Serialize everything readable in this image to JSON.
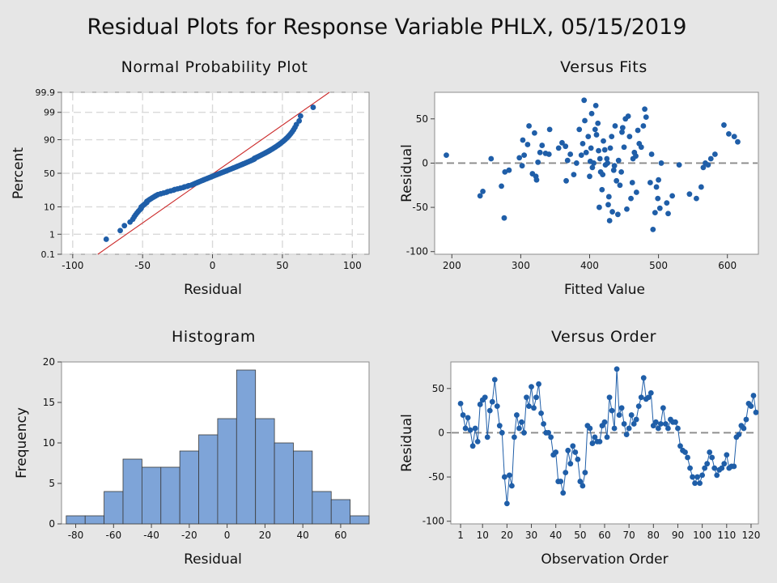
{
  "title": "Residual Plots for Response Variable PHLX, 05/15/2019",
  "colors": {
    "points": "#1f5ea8",
    "bars": "#7ea4d8",
    "fit_line": "#cc2b2b",
    "background": "#e6e6e6"
  },
  "chart_data": [
    {
      "id": "probability",
      "type": "scatter",
      "title": "Normal Probability Plot",
      "xlabel": "Residual",
      "ylabel": "Percent",
      "xlim": [
        -108,
        112
      ],
      "xticks": [
        -100,
        -50,
        0,
        50,
        100
      ],
      "yticks": [
        0.1,
        1,
        10,
        50,
        90,
        99,
        99.9
      ],
      "grid": true,
      "fit_line": {
        "mean": 0.8,
        "sd": 26.8
      },
      "residuals": [
        -76,
        -66,
        -63,
        -59,
        -57,
        -56,
        -55,
        -54,
        -53,
        -52,
        -51,
        -51,
        -50,
        -49,
        -48,
        -47,
        -47,
        -46,
        -45,
        -44,
        -43,
        -42,
        -41,
        -40,
        -39,
        -37,
        -35,
        -33,
        -32,
        -30,
        -28,
        -27,
        -25,
        -23,
        -21,
        -20,
        -18,
        -17,
        -15,
        -14,
        -13,
        -12,
        -11,
        -10,
        -9,
        -8,
        -7,
        -6,
        -5,
        -4,
        -3,
        -2,
        -1,
        0,
        1,
        2,
        3,
        4,
        5,
        6,
        7,
        8,
        9,
        10,
        11,
        12,
        13,
        14,
        15,
        16,
        17,
        18,
        19,
        20,
        21,
        22,
        23,
        24,
        25,
        26,
        27,
        28,
        29,
        30,
        30,
        31,
        32,
        33,
        34,
        35,
        36,
        37,
        38,
        39,
        40,
        41,
        42,
        43,
        44,
        45,
        46,
        47,
        48,
        49,
        50,
        51,
        52,
        53,
        54,
        55,
        56,
        57,
        58,
        59,
        60,
        62,
        63,
        72
      ]
    },
    {
      "id": "fits",
      "type": "scatter",
      "title": "Versus Fits",
      "xlabel": "Fitted Value",
      "ylabel": "Residual",
      "xlim": [
        175,
        645
      ],
      "ylim": [
        -103,
        80
      ],
      "xticks": [
        200,
        300,
        400,
        500,
        600
      ],
      "yticks": [
        -100,
        -50,
        0,
        50
      ],
      "reference_line": 0,
      "points": [
        [
          192,
          9
        ],
        [
          241,
          -37
        ],
        [
          245,
          -32
        ],
        [
          257,
          5
        ],
        [
          272,
          -26
        ],
        [
          276,
          -62
        ],
        [
          277,
          -10
        ],
        [
          283,
          -8
        ],
        [
          298,
          6
        ],
        [
          302,
          -3
        ],
        [
          303,
          26
        ],
        [
          305,
          9
        ],
        [
          310,
          21
        ],
        [
          312,
          42
        ],
        [
          317,
          -12
        ],
        [
          320,
          34
        ],
        [
          322,
          -15
        ],
        [
          323,
          -19
        ],
        [
          325,
          1
        ],
        [
          328,
          12
        ],
        [
          331,
          20
        ],
        [
          336,
          11
        ],
        [
          341,
          10
        ],
        [
          342,
          38
        ],
        [
          355,
          17
        ],
        [
          360,
          23
        ],
        [
          365,
          19
        ],
        [
          366,
          -20
        ],
        [
          368,
          3
        ],
        [
          372,
          10
        ],
        [
          377,
          -13
        ],
        [
          381,
          0
        ],
        [
          385,
          38
        ],
        [
          388,
          9
        ],
        [
          390,
          22
        ],
        [
          392,
          71
        ],
        [
          393,
          48
        ],
        [
          395,
          12
        ],
        [
          398,
          30
        ],
        [
          400,
          -15
        ],
        [
          401,
          2
        ],
        [
          402,
          17
        ],
        [
          403,
          56
        ],
        [
          404,
          -5
        ],
        [
          406,
          0
        ],
        [
          408,
          38
        ],
        [
          409,
          65
        ],
        [
          410,
          32
        ],
        [
          412,
          45
        ],
        [
          413,
          14
        ],
        [
          414,
          -50
        ],
        [
          415,
          5
        ],
        [
          416,
          -10
        ],
        [
          418,
          -30
        ],
        [
          419,
          -13
        ],
        [
          420,
          25
        ],
        [
          422,
          15
        ],
        [
          423,
          -2
        ],
        [
          425,
          5
        ],
        [
          426,
          0
        ],
        [
          427,
          -47
        ],
        [
          428,
          -38
        ],
        [
          429,
          -65
        ],
        [
          430,
          17
        ],
        [
          432,
          30
        ],
        [
          433,
          -55
        ],
        [
          435,
          -8
        ],
        [
          436,
          -3
        ],
        [
          437,
          42
        ],
        [
          439,
          -20
        ],
        [
          441,
          -58
        ],
        [
          442,
          3
        ],
        [
          444,
          -25
        ],
        [
          446,
          -10
        ],
        [
          447,
          35
        ],
        [
          448,
          40
        ],
        [
          450,
          18
        ],
        [
          452,
          50
        ],
        [
          454,
          -52
        ],
        [
          456,
          53
        ],
        [
          458,
          30
        ],
        [
          460,
          -40
        ],
        [
          462,
          -22
        ],
        [
          463,
          5
        ],
        [
          465,
          12
        ],
        [
          467,
          8
        ],
        [
          468,
          -33
        ],
        [
          470,
          37
        ],
        [
          472,
          22
        ],
        [
          475,
          18
        ],
        [
          478,
          42
        ],
        [
          480,
          61
        ],
        [
          482,
          52
        ],
        [
          488,
          -22
        ],
        [
          490,
          10
        ],
        [
          492,
          -75
        ],
        [
          495,
          -56
        ],
        [
          497,
          -27
        ],
        [
          499,
          -40
        ],
        [
          500,
          -19
        ],
        [
          502,
          -51
        ],
        [
          504,
          0
        ],
        [
          512,
          -45
        ],
        [
          514,
          -57
        ],
        [
          520,
          -37
        ],
        [
          530,
          -2
        ],
        [
          545,
          -35
        ],
        [
          555,
          -40
        ],
        [
          562,
          -27
        ],
        [
          565,
          -5
        ],
        [
          568,
          0
        ],
        [
          572,
          -2
        ],
        [
          576,
          5
        ],
        [
          582,
          10
        ],
        [
          595,
          43
        ],
        [
          602,
          33
        ],
        [
          610,
          30
        ],
        [
          615,
          24
        ]
      ]
    },
    {
      "id": "histogram",
      "type": "bar",
      "title": "Histogram",
      "xlabel": "Residual",
      "ylabel": "Frequency",
      "xlim": [
        -87.5,
        75
      ],
      "ylim": [
        0,
        20
      ],
      "xticks": [
        -80,
        -60,
        -40,
        -20,
        0,
        20,
        40,
        60
      ],
      "yticks": [
        0,
        5,
        10,
        15,
        20
      ],
      "bin_width": 10,
      "bin_centers": [
        -80,
        -70,
        -60,
        -50,
        -40,
        -30,
        -20,
        -10,
        0,
        10,
        20,
        30,
        40,
        50,
        60,
        70
      ],
      "frequencies": [
        1,
        1,
        4,
        8,
        7,
        7,
        9,
        11,
        13,
        19,
        13,
        10,
        9,
        4,
        3,
        1
      ]
    },
    {
      "id": "order",
      "type": "line",
      "title": "Versus Order",
      "xlabel": "Observation Order",
      "ylabel": "Residual",
      "xlim": [
        -3,
        123
      ],
      "ylim": [
        -103,
        80
      ],
      "xticks": [
        1,
        10,
        20,
        30,
        40,
        50,
        60,
        70,
        80,
        90,
        100,
        110,
        120
      ],
      "yticks": [
        -100,
        -50,
        0,
        50
      ],
      "reference_line": 0,
      "x_start": 1,
      "values": [
        33,
        20,
        5,
        17,
        3,
        -15,
        5,
        -10,
        32,
        37,
        40,
        -5,
        25,
        35,
        60,
        30,
        8,
        0,
        -50,
        -80,
        -48,
        -60,
        -5,
        20,
        5,
        12,
        0,
        40,
        30,
        52,
        28,
        40,
        55,
        22,
        10,
        0,
        0,
        -5,
        -25,
        -22,
        -55,
        -55,
        -68,
        -45,
        -20,
        -35,
        -15,
        -22,
        -30,
        -55,
        -60,
        -45,
        8,
        5,
        -12,
        -5,
        -10,
        -10,
        8,
        12,
        -5,
        40,
        25,
        5,
        72,
        20,
        28,
        10,
        -2,
        5,
        20,
        10,
        15,
        30,
        40,
        62,
        38,
        40,
        45,
        8,
        12,
        5,
        10,
        28,
        10,
        5,
        15,
        12,
        12,
        5,
        -15,
        -20,
        -22,
        -28,
        -40,
        -50,
        -57,
        -50,
        -57,
        -48,
        -40,
        -35,
        -22,
        -28,
        -40,
        -48,
        -42,
        -40,
        -35,
        -25,
        -40,
        -38,
        -38,
        -5,
        -2,
        8,
        5,
        15,
        33,
        30,
        42,
        23
      ]
    }
  ]
}
